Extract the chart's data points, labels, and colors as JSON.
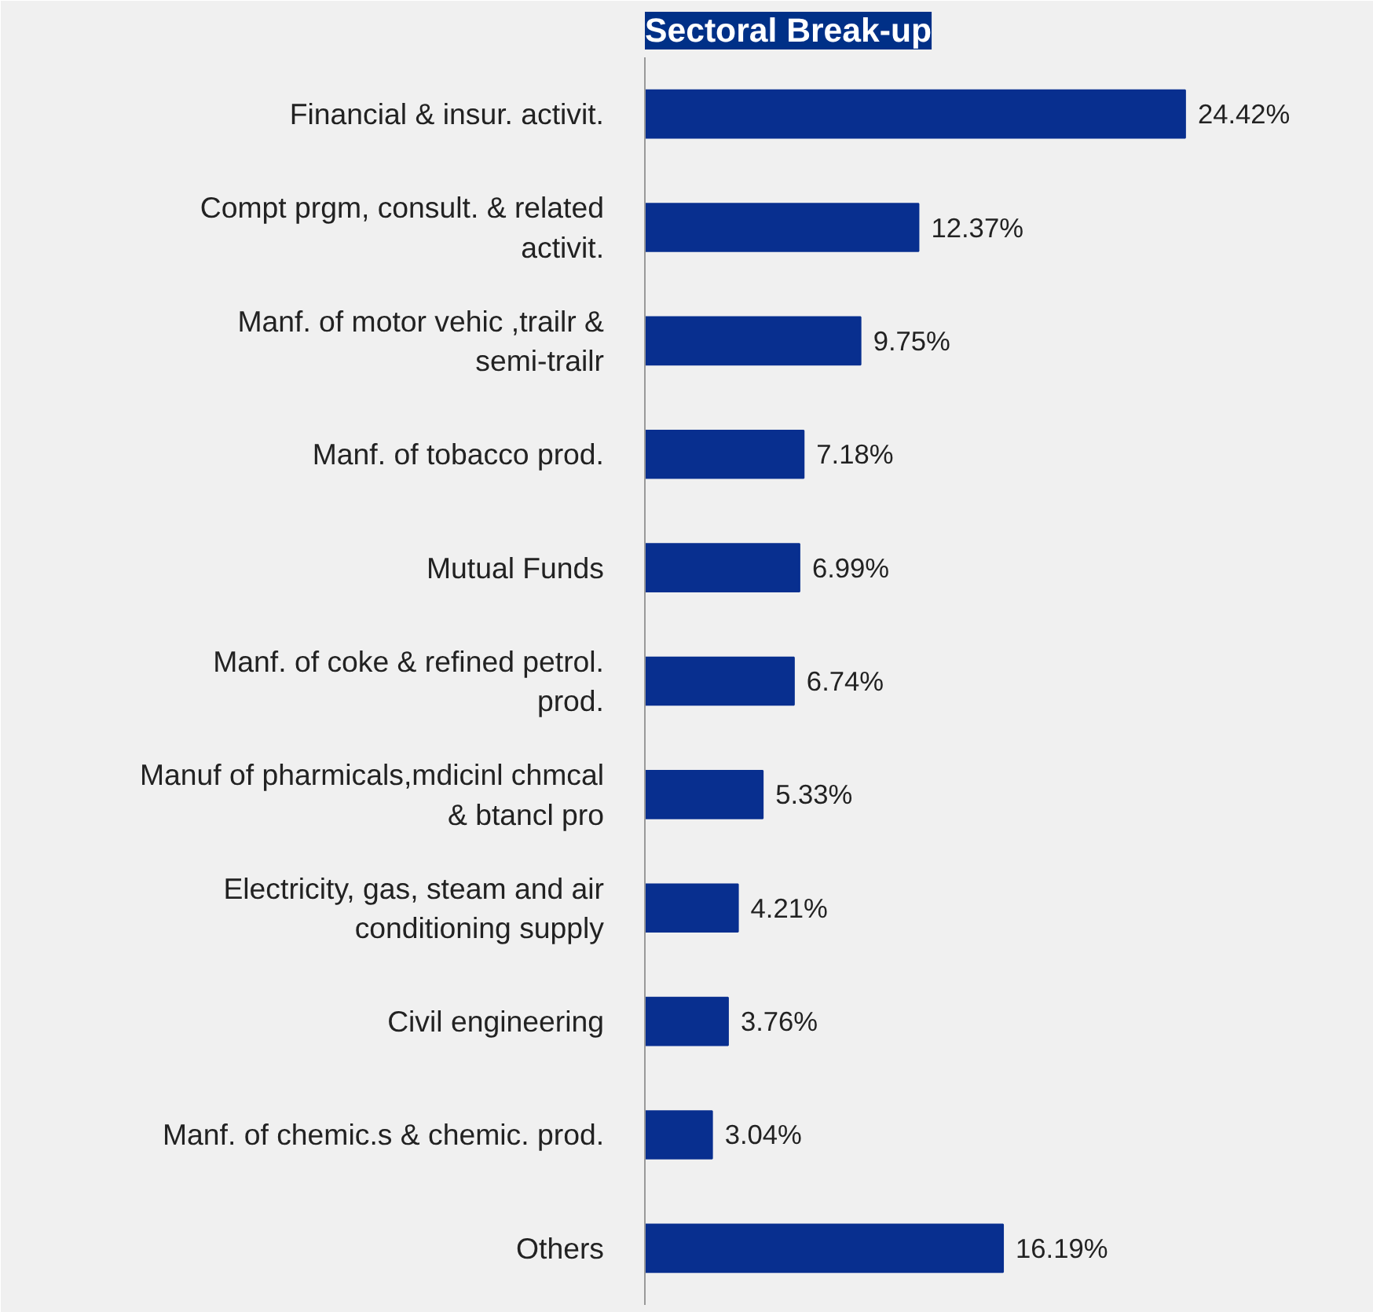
{
  "chart_data": {
    "type": "bar",
    "orientation": "horizontal",
    "title": "Sectoral Break-up",
    "categories": [
      "Financial & insur. activit.",
      "Compt prgm, consult. & related activit.",
      "Manf. of motor vehic ,trailr & semi-trailr",
      "Manf. of tobacco prod.",
      "Mutual Funds",
      "Manf. of coke & refined petrol. prod.",
      "Manuf of pharmicals,mdicinl chmcal & btancl pro",
      "Electricity, gas, steam and air conditioning supply",
      "Civil engineering",
      "Manf. of chemic.s & chemic. prod.",
      "Others"
    ],
    "values": [
      24.42,
      12.37,
      9.75,
      7.18,
      6.99,
      6.74,
      5.33,
      4.21,
      3.76,
      3.04,
      16.19
    ],
    "value_labels": [
      "24.42%",
      "12.37%",
      "9.75%",
      "7.18%",
      "6.99%",
      "6.74%",
      "5.33%",
      "4.21%",
      "3.76%",
      "3.04%",
      "16.19%"
    ],
    "color": "#082f8f",
    "grid": false
  }
}
